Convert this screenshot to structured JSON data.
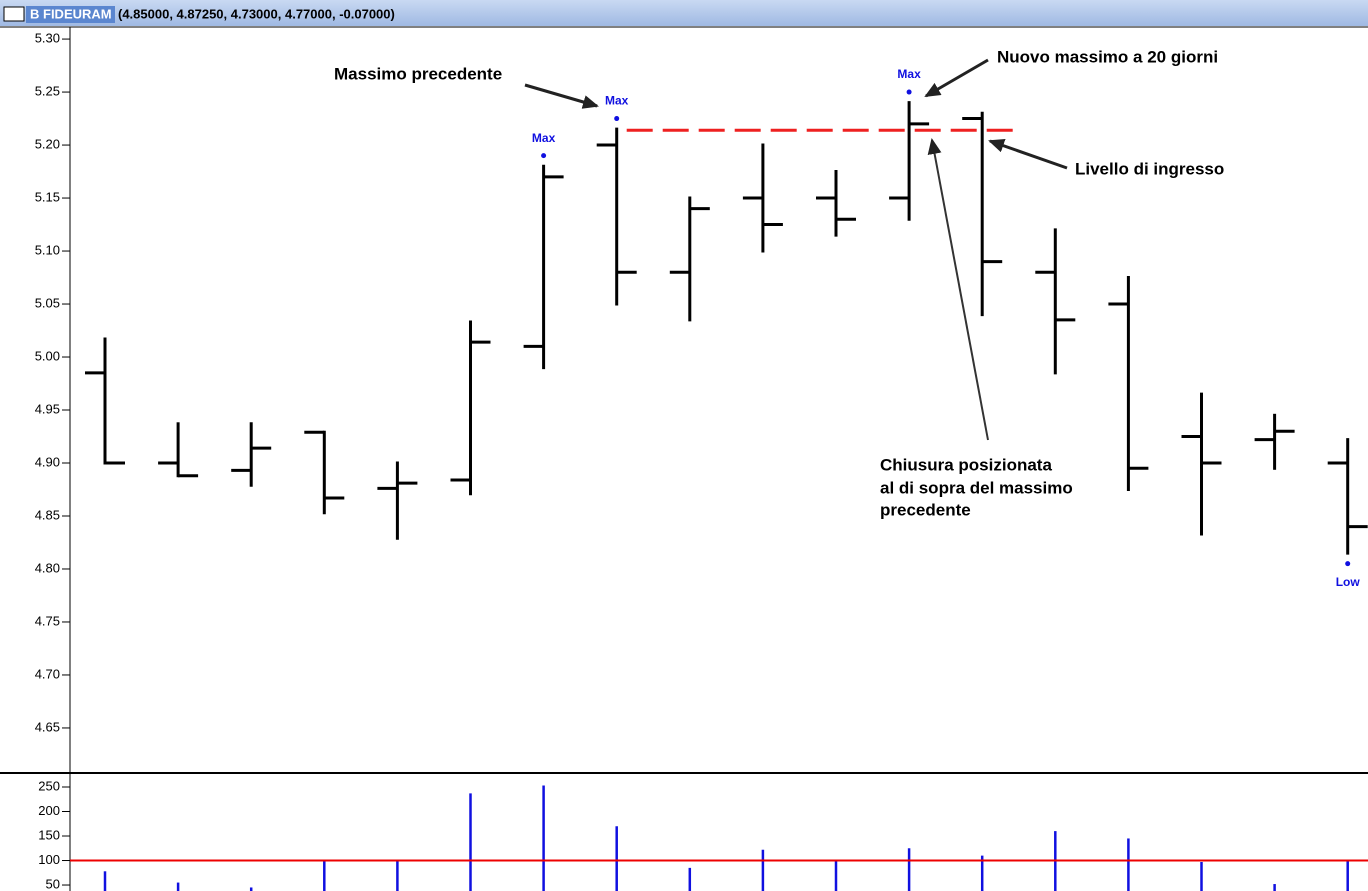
{
  "chart_data": [
    {
      "type": "ohlc",
      "title": "B FIDEURAM",
      "subtitle": "(4.85000, 4.87250, 4.73000, 4.77000, -0.07000)",
      "open": [
        4.985,
        4.9,
        4.893,
        4.929,
        4.876,
        4.884,
        5.01,
        5.2,
        5.08,
        5.15,
        5.15,
        5.15,
        5.225,
        5.08,
        5.05,
        4.925,
        4.922,
        4.9
      ],
      "high": [
        5.017,
        4.937,
        4.937,
        4.929,
        4.9,
        5.033,
        5.18,
        5.215,
        5.15,
        5.2,
        5.175,
        5.24,
        5.23,
        5.12,
        5.075,
        4.965,
        4.945,
        4.922
      ],
      "low": [
        4.9,
        4.888,
        4.879,
        4.853,
        4.829,
        4.871,
        4.99,
        5.05,
        5.035,
        5.1,
        5.115,
        5.13,
        5.04,
        4.985,
        4.875,
        4.833,
        4.895,
        4.815
      ],
      "close": [
        4.9,
        4.888,
        4.914,
        4.867,
        4.881,
        5.014,
        5.17,
        5.08,
        5.14,
        5.125,
        5.13,
        5.22,
        5.09,
        5.035,
        4.895,
        4.9,
        4.93,
        4.84
      ],
      "color": "#000000",
      "ylim": [
        4.6075,
        5.3095
      ],
      "yticks": [
        {
          "value": 5.3,
          "label": "5.30"
        },
        {
          "value": 5.25,
          "label": "5.25"
        },
        {
          "value": 5.2,
          "label": "5.20"
        },
        {
          "value": 5.15,
          "label": "5.15"
        },
        {
          "value": 5.1,
          "label": "5.10"
        },
        {
          "value": 5.05,
          "label": "5.05"
        },
        {
          "value": 5,
          "label": "5.00"
        },
        {
          "value": 4.95,
          "label": "4.95"
        },
        {
          "value": 4.9,
          "label": "4.90"
        },
        {
          "value": 4.85,
          "label": "4.85"
        },
        {
          "value": 4.8,
          "label": "4.80"
        },
        {
          "value": 4.75,
          "label": "4.75"
        },
        {
          "value": 4.7,
          "label": "4.70"
        },
        {
          "value": 4.65,
          "label": "4.65"
        }
      ],
      "markers": [
        {
          "label": "Max",
          "index": 6,
          "value": 5.19
        },
        {
          "label": "Max",
          "index": 7,
          "value": 5.225
        },
        {
          "label": "Max",
          "index": 11,
          "value": 5.25
        },
        {
          "label": "Low",
          "index": 17,
          "value": 4.805
        }
      ],
      "marker_color": "#1010e0",
      "entry_level": {
        "value": 5.214,
        "from_index": 7,
        "to_index": 12,
        "color": "#ee2020"
      },
      "annotations": {
        "previous_high": "Massimo precedente",
        "new_high": "Nuovo massimo a 20 giorni",
        "entry": "Livello di ingresso",
        "close_above": [
          "Chiusura posizionata",
          "al di sopra del massimo",
          "precedente"
        ]
      }
    },
    {
      "type": "bar",
      "values": [
        78,
        55,
        45,
        100,
        100,
        237,
        253,
        170,
        85,
        122,
        100,
        125,
        110,
        160,
        145,
        97,
        52,
        100
      ],
      "color": "#1010e0",
      "ylim": [
        37.8,
        274.5
      ],
      "yticks": [
        50,
        100,
        150,
        200,
        250
      ],
      "reference_line": {
        "value": 100,
        "color": "#ee0000"
      }
    }
  ]
}
